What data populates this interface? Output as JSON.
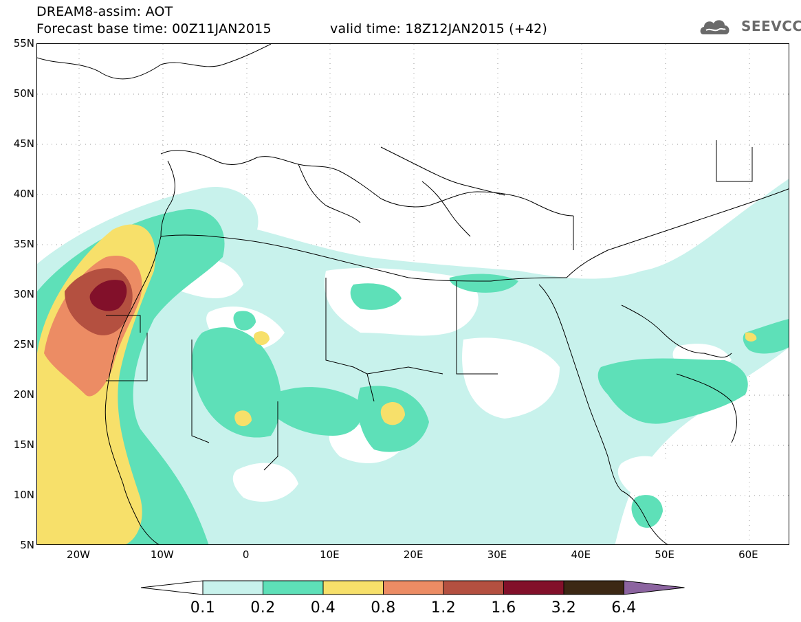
{
  "title": {
    "line1": "DREAM8-assim: AOT",
    "base_time": "Forecast base time: 00Z11JAN2015",
    "valid_time": "valid time: 18Z12JAN2015 (+42)"
  },
  "logo": {
    "name": "cloud-logo-icon",
    "text": "SEEVCCC"
  },
  "map": {
    "lat_labels": [
      "55N",
      "50N",
      "45N",
      "40N",
      "35N",
      "30N",
      "25N",
      "20N",
      "15N",
      "10N",
      "5N"
    ],
    "lon_labels": [
      "20W",
      "10W",
      "0",
      "10E",
      "20E",
      "30E",
      "40E",
      "50E",
      "60E"
    ],
    "colors": {
      "aot_0_1": "#c8f2ec",
      "aot_0_2": "#5ee0b8",
      "aot_0_4": "#f7e06a",
      "aot_0_8": "#ec8c64",
      "aot_1_2": "#b45040",
      "aot_1_6": "#82102a",
      "aot_3_2": "#3c2814",
      "aot_6_4": "#8c64a0",
      "coastline": "#000000"
    }
  },
  "colorbar": {
    "labels": [
      "0.1",
      "0.2",
      "0.4",
      "0.8",
      "1.2",
      "1.6",
      "3.2",
      "6.4"
    ],
    "colors": [
      "#ffffff",
      "#c8f2ec",
      "#5ee0b8",
      "#f7e06a",
      "#ec8c64",
      "#b45040",
      "#82102a",
      "#3c2814",
      "#8c64a0"
    ]
  }
}
